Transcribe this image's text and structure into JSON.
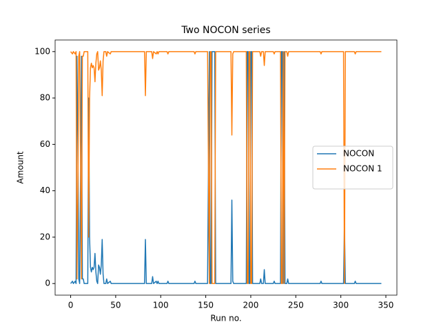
{
  "chart_data": {
    "type": "line",
    "title": "Two NOCON series",
    "xlabel": "Run no.",
    "ylabel": "Amount",
    "x": [
      0,
      2,
      3,
      5,
      6,
      7,
      8,
      9,
      10,
      12,
      13,
      14,
      15,
      19,
      20,
      21,
      22,
      23,
      24,
      25,
      26,
      27,
      28,
      29,
      30,
      31,
      32,
      33,
      34,
      35,
      36,
      37,
      39,
      40,
      41,
      44,
      45,
      82,
      83,
      84,
      90,
      91,
      92,
      95,
      96,
      97,
      98,
      107,
      108,
      109,
      137,
      138,
      139,
      152,
      153,
      154,
      155,
      156,
      157,
      160,
      161,
      178,
      179,
      180,
      181,
      195,
      196,
      197,
      198,
      199,
      200,
      201,
      202,
      210,
      211,
      212,
      214,
      215,
      216,
      225,
      226,
      227,
      233,
      234,
      235,
      236,
      237,
      238,
      240,
      241,
      242,
      277,
      278,
      279,
      303,
      304,
      305,
      315,
      316,
      317,
      345
    ],
    "series": [
      {
        "name": "NOCON",
        "color": "#1f77b4",
        "values": [
          0,
          1,
          0,
          1,
          0,
          98,
          60,
          2,
          0,
          98,
          2,
          2,
          0,
          0,
          80,
          20,
          7,
          5,
          7,
          6,
          7,
          13,
          5,
          1,
          0,
          8,
          7,
          4,
          8,
          19,
          4,
          0,
          0,
          2,
          0,
          1,
          0,
          0,
          19,
          0,
          0,
          3,
          0,
          1,
          0,
          1,
          0,
          0,
          1,
          0,
          0,
          1,
          0,
          0,
          49,
          100,
          0,
          0,
          100,
          100,
          0,
          0,
          36,
          1,
          0,
          0,
          100,
          100,
          0,
          0,
          100,
          100,
          0,
          0,
          2,
          0,
          0,
          6,
          0,
          0,
          1,
          0,
          0,
          100,
          100,
          0,
          100,
          0,
          0,
          2,
          0,
          0,
          1,
          0,
          0,
          26,
          0,
          0,
          1,
          0,
          0
        ]
      },
      {
        "name": "NOCON 1",
        "color": "#ff7f0e",
        "values": [
          100,
          99,
          100,
          99,
          100,
          2,
          40,
          98,
          100,
          2,
          98,
          98,
          100,
          100,
          20,
          80,
          93,
          95,
          93,
          94,
          93,
          87,
          95,
          99,
          100,
          92,
          93,
          96,
          92,
          81,
          96,
          100,
          100,
          98,
          100,
          99,
          100,
          100,
          81,
          100,
          100,
          97,
          100,
          99,
          100,
          99,
          100,
          100,
          99,
          100,
          100,
          99,
          100,
          100,
          51,
          0,
          100,
          100,
          0,
          0,
          100,
          100,
          64,
          99,
          100,
          100,
          0,
          0,
          100,
          100,
          0,
          0,
          100,
          100,
          98,
          100,
          100,
          94,
          100,
          100,
          99,
          100,
          100,
          0,
          0,
          100,
          0,
          100,
          100,
          98,
          100,
          100,
          99,
          100,
          100,
          0,
          100,
          100,
          99,
          100,
          100
        ]
      }
    ],
    "xlim": [
      -17.25,
      362.25
    ],
    "xticks": [
      0,
      50,
      100,
      150,
      200,
      250,
      300,
      350
    ],
    "ylim": [
      -5,
      105
    ],
    "yticks": [
      0,
      20,
      40,
      60,
      80,
      100
    ],
    "legend": "center right"
  }
}
